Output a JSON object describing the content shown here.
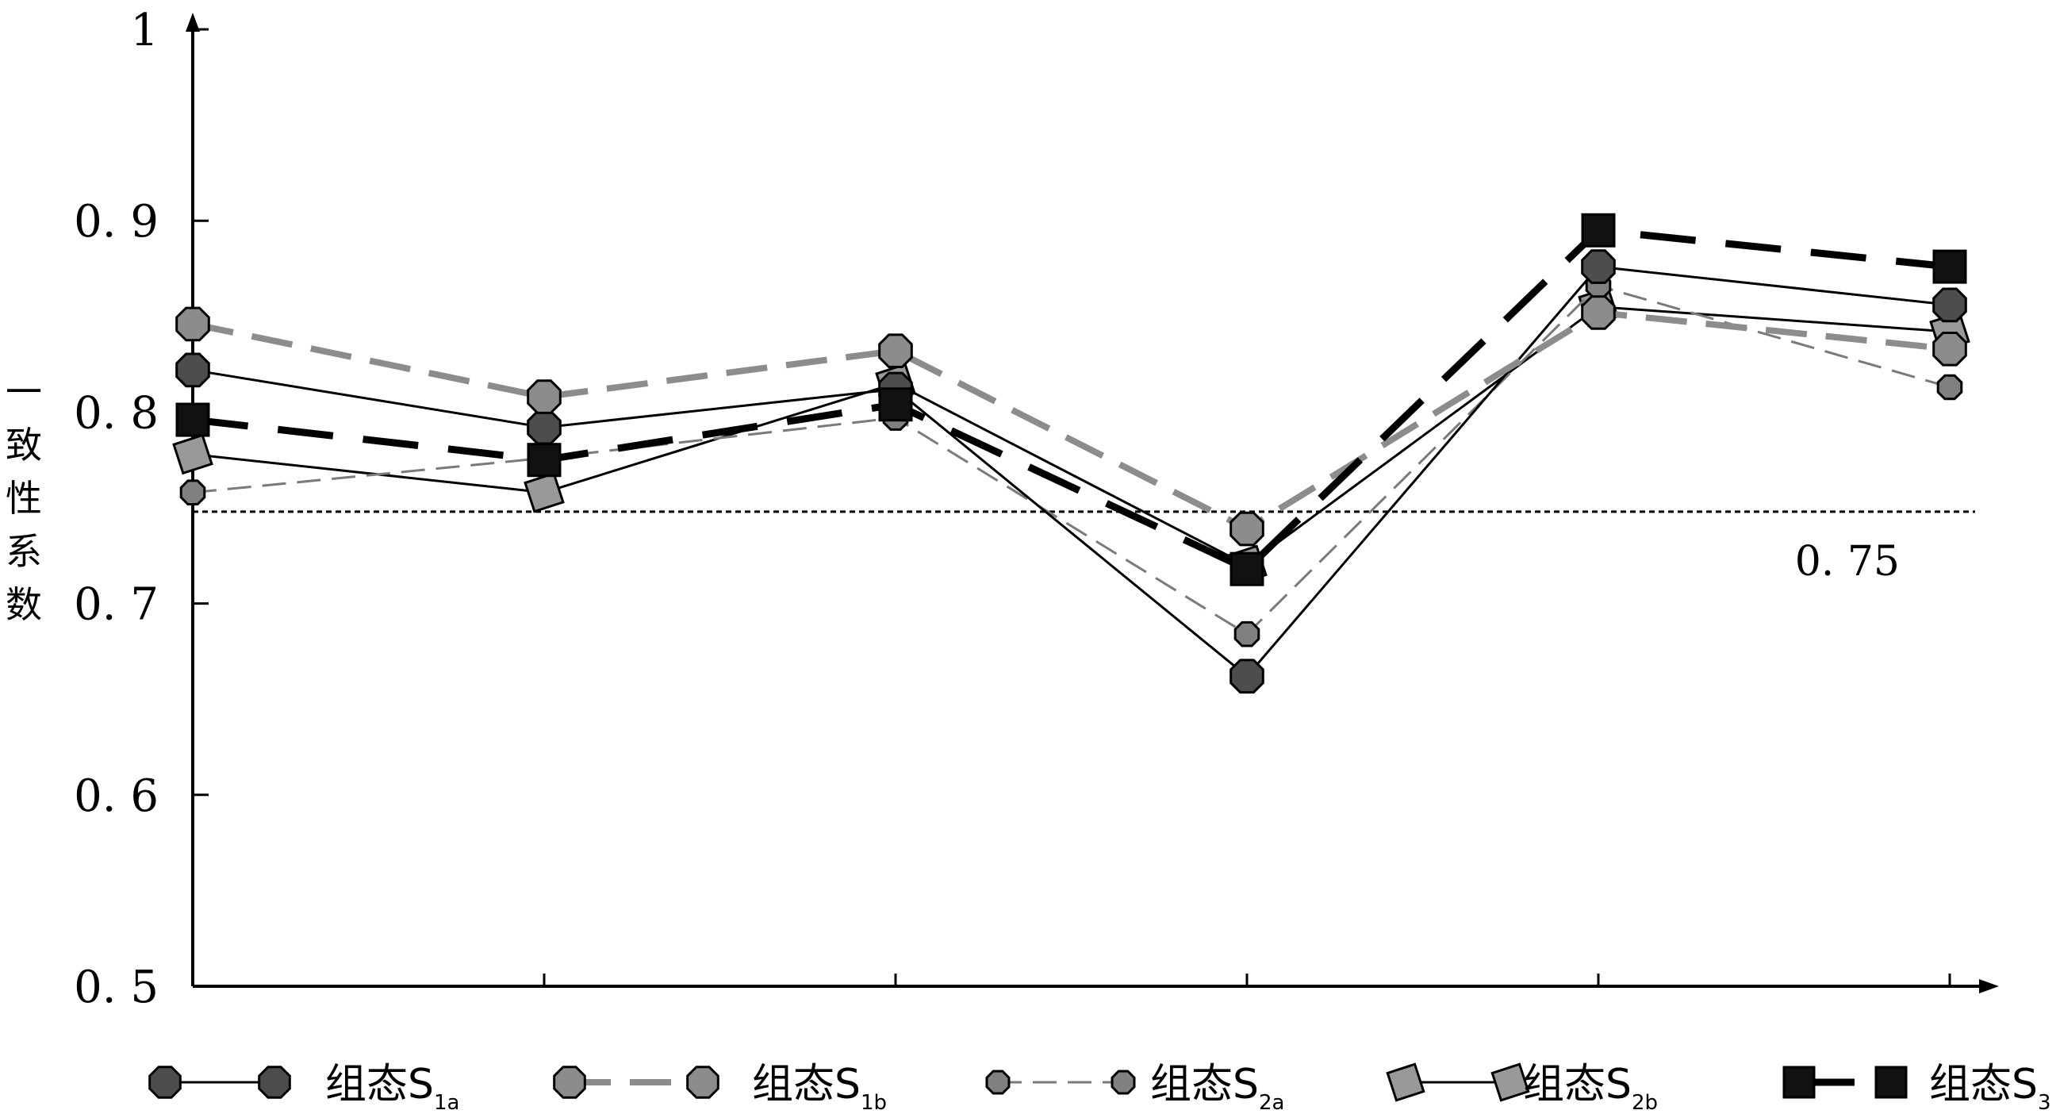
{
  "chart_data": {
    "type": "line",
    "ylabel": "一致性系数",
    "ylim": [
      0.5,
      1.0
    ],
    "y_ticks": [
      {
        "value": 1.0,
        "label": "1"
      },
      {
        "value": 0.9,
        "label": "0. 9"
      },
      {
        "value": 0.8,
        "label": "0. 8"
      },
      {
        "value": 0.7,
        "label": "0. 7"
      },
      {
        "value": 0.6,
        "label": "0. 6"
      },
      {
        "value": 0.5,
        "label": "0. 5"
      }
    ],
    "x_count": 6,
    "reference_line": {
      "value": 0.748,
      "label": "0. 75"
    },
    "series": [
      {
        "name": "组态S1a",
        "main": "组态S",
        "sub": "1a",
        "values": [
          0.822,
          0.792,
          0.812,
          0.662,
          0.876,
          0.856
        ],
        "line": "solid-thin",
        "marker": "octagon",
        "fill": "#4d4d4d",
        "color": "#000000"
      },
      {
        "name": "组态S1b",
        "main": "组态S",
        "sub": "1b",
        "values": [
          0.846,
          0.808,
          0.832,
          0.739,
          0.852,
          0.833
        ],
        "line": "dashed-thick-gray",
        "marker": "octagon",
        "fill": "#8c8c8c",
        "color": "#8c8c8c"
      },
      {
        "name": "组态S2a",
        "main": "组态S",
        "sub": "2a",
        "values": [
          0.758,
          0.776,
          0.797,
          0.684,
          0.866,
          0.813
        ],
        "line": "dashed-thin-gray",
        "marker": "octagon-small",
        "fill": "#808080",
        "color": "#7a7a7a"
      },
      {
        "name": "组态S2b",
        "main": "组态S",
        "sub": "2b",
        "values": [
          0.778,
          0.758,
          0.815,
          0.72,
          0.855,
          0.842
        ],
        "line": "solid-thin",
        "marker": "square-rot",
        "fill": "#999999",
        "color": "#000000"
      },
      {
        "name": "组态S3",
        "main": "组态S",
        "sub": "3",
        "values": [
          0.796,
          0.775,
          0.804,
          0.718,
          0.895,
          0.876
        ],
        "line": "dashed-thick-black",
        "marker": "square",
        "fill": "#111111",
        "color": "#000000"
      }
    ]
  },
  "colors": {
    "axis": "#000000",
    "dark_marker": "#4d4d4d",
    "gray_marker": "#8c8c8c",
    "black_marker": "#111111"
  }
}
